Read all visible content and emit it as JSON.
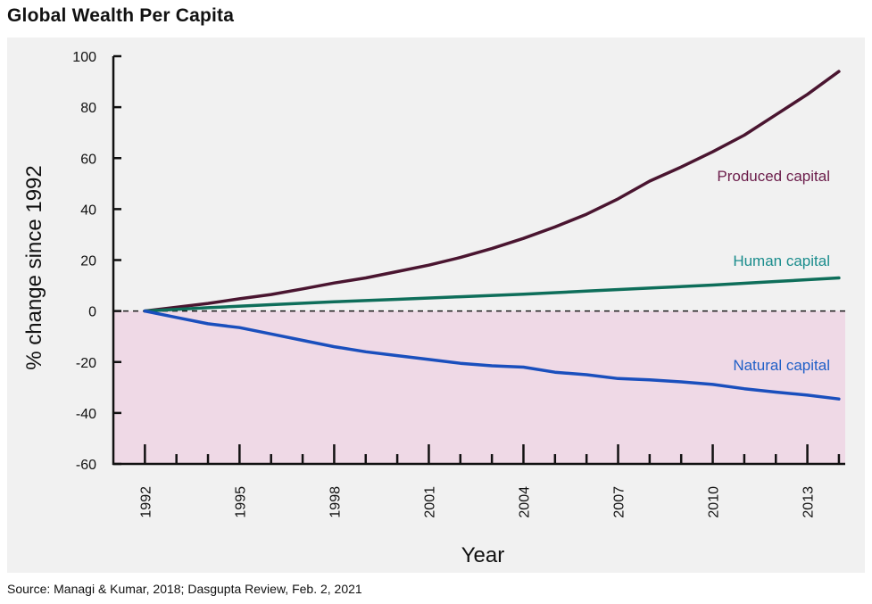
{
  "title": "Global Wealth Per Capita",
  "source": "Source: Managi & Kumar, 2018; Dasgupta Review, Feb. 2, 2021",
  "chart_data": {
    "type": "line",
    "xlabel": "Year",
    "ylabel": "% change since 1992",
    "xlim": [
      1991,
      2014.2
    ],
    "ylim": [
      -60,
      100
    ],
    "y_ticks": [
      100,
      80,
      60,
      40,
      20,
      0,
      -20,
      -40,
      -60
    ],
    "x_tick_labels": [
      1992,
      1995,
      1998,
      2001,
      2004,
      2007,
      2010,
      2013
    ],
    "x_minor_ticks": [
      1992,
      1993,
      1994,
      1995,
      1996,
      1997,
      1998,
      1999,
      2000,
      2001,
      2002,
      2003,
      2004,
      2005,
      2006,
      2007,
      2008,
      2009,
      2010,
      2011,
      2012,
      2013,
      2014
    ],
    "zero_line": "dashed",
    "negative_region_color": "#efd9e6",
    "series": [
      {
        "name": "Produced capital",
        "color": "#4a1530",
        "label_color": "#6b1c4a",
        "x": [
          1992,
          1993,
          1994,
          1995,
          1996,
          1997,
          1998,
          1999,
          2000,
          2001,
          2002,
          2003,
          2004,
          2005,
          2006,
          2007,
          2008,
          2009,
          2010,
          2011,
          2012,
          2013,
          2014
        ],
        "y": [
          0,
          1.5,
          3,
          4.8,
          6.5,
          8.7,
          11,
          13,
          15.5,
          18,
          21,
          24.5,
          28.5,
          33,
          38,
          44,
          51,
          56.5,
          62.5,
          69,
          77,
          85,
          94
        ]
      },
      {
        "name": "Human capital",
        "color": "#0e6e5a",
        "label_color": "#1a8c8c",
        "x": [
          1992,
          1994,
          1996,
          1998,
          2000,
          2002,
          2004,
          2006,
          2008,
          2010,
          2012,
          2014
        ],
        "y": [
          0,
          1.3,
          2.5,
          3.6,
          4.6,
          5.6,
          6.6,
          7.8,
          9,
          10.2,
          11.6,
          13
        ]
      },
      {
        "name": "Natural capital",
        "color": "#1a4fbd",
        "label_color": "#1f5fc7",
        "x": [
          1992,
          1993,
          1994,
          1995,
          1996,
          1997,
          1998,
          1999,
          2000,
          2001,
          2002,
          2003,
          2004,
          2005,
          2006,
          2007,
          2008,
          2009,
          2010,
          2011,
          2012,
          2013,
          2014
        ],
        "y": [
          0,
          -2.5,
          -5,
          -6.5,
          -9,
          -11.5,
          -14,
          -16,
          -17.5,
          -19,
          -20.5,
          -21.5,
          -22,
          -24,
          -25,
          -26.5,
          -27,
          -27.8,
          -28.8,
          -30.5,
          -31.8,
          -33,
          -34.5
        ]
      }
    ]
  }
}
